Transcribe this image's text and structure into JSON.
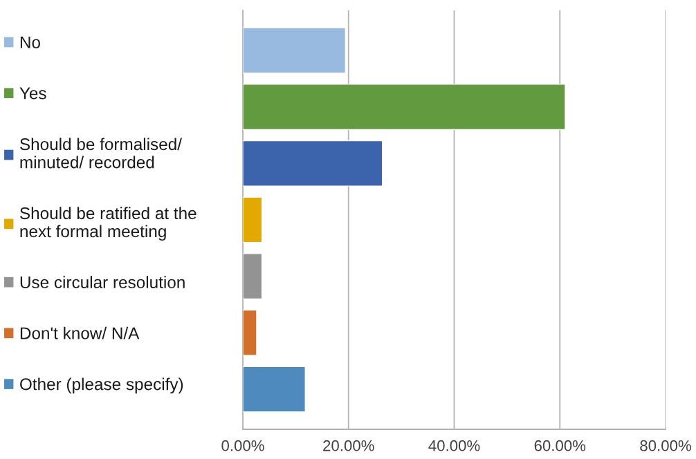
{
  "chart_data": {
    "type": "bar",
    "orientation": "horizontal",
    "categories": [
      null,
      null,
      null,
      null,
      null,
      null,
      null
    ],
    "series": [
      {
        "name": "No",
        "color": "#98b9e0",
        "values": [
          19.4,
          null,
          null,
          null,
          null,
          null,
          null
        ]
      },
      {
        "name": "Yes",
        "color": "#629a3f",
        "values": [
          null,
          61.0,
          null,
          null,
          null,
          null,
          null
        ]
      },
      {
        "name": "Should be formalised/\nminuted/ recorded",
        "color": "#3c64ac",
        "values": [
          null,
          null,
          26.4,
          null,
          null,
          null,
          null
        ]
      },
      {
        "name": "Should be ratified at the\nnext formal meeting",
        "color": "#e2aa00",
        "values": [
          null,
          null,
          null,
          3.6,
          null,
          null,
          null
        ]
      },
      {
        "name": "Use circular resolution",
        "color": "#939393",
        "values": [
          null,
          null,
          null,
          null,
          3.6,
          null,
          null
        ]
      },
      {
        "name": "Don't know/ N/A",
        "color": "#d2702b",
        "values": [
          null,
          null,
          null,
          null,
          null,
          2.6,
          null
        ]
      },
      {
        "name": "Other (please specify)",
        "color": "#4e8abd",
        "values": [
          null,
          null,
          null,
          null,
          null,
          null,
          11.8
        ]
      }
    ],
    "xlim": [
      0,
      80
    ],
    "xticks": [
      {
        "value": 0,
        "label": "0.00%"
      },
      {
        "value": 20,
        "label": "20.00%"
      },
      {
        "value": 40,
        "label": "40.00%"
      },
      {
        "value": 60,
        "label": "60.00%"
      },
      {
        "value": 80,
        "label": "80.00%"
      }
    ],
    "grid": "x",
    "legend": "left",
    "tick_labels": "x"
  }
}
